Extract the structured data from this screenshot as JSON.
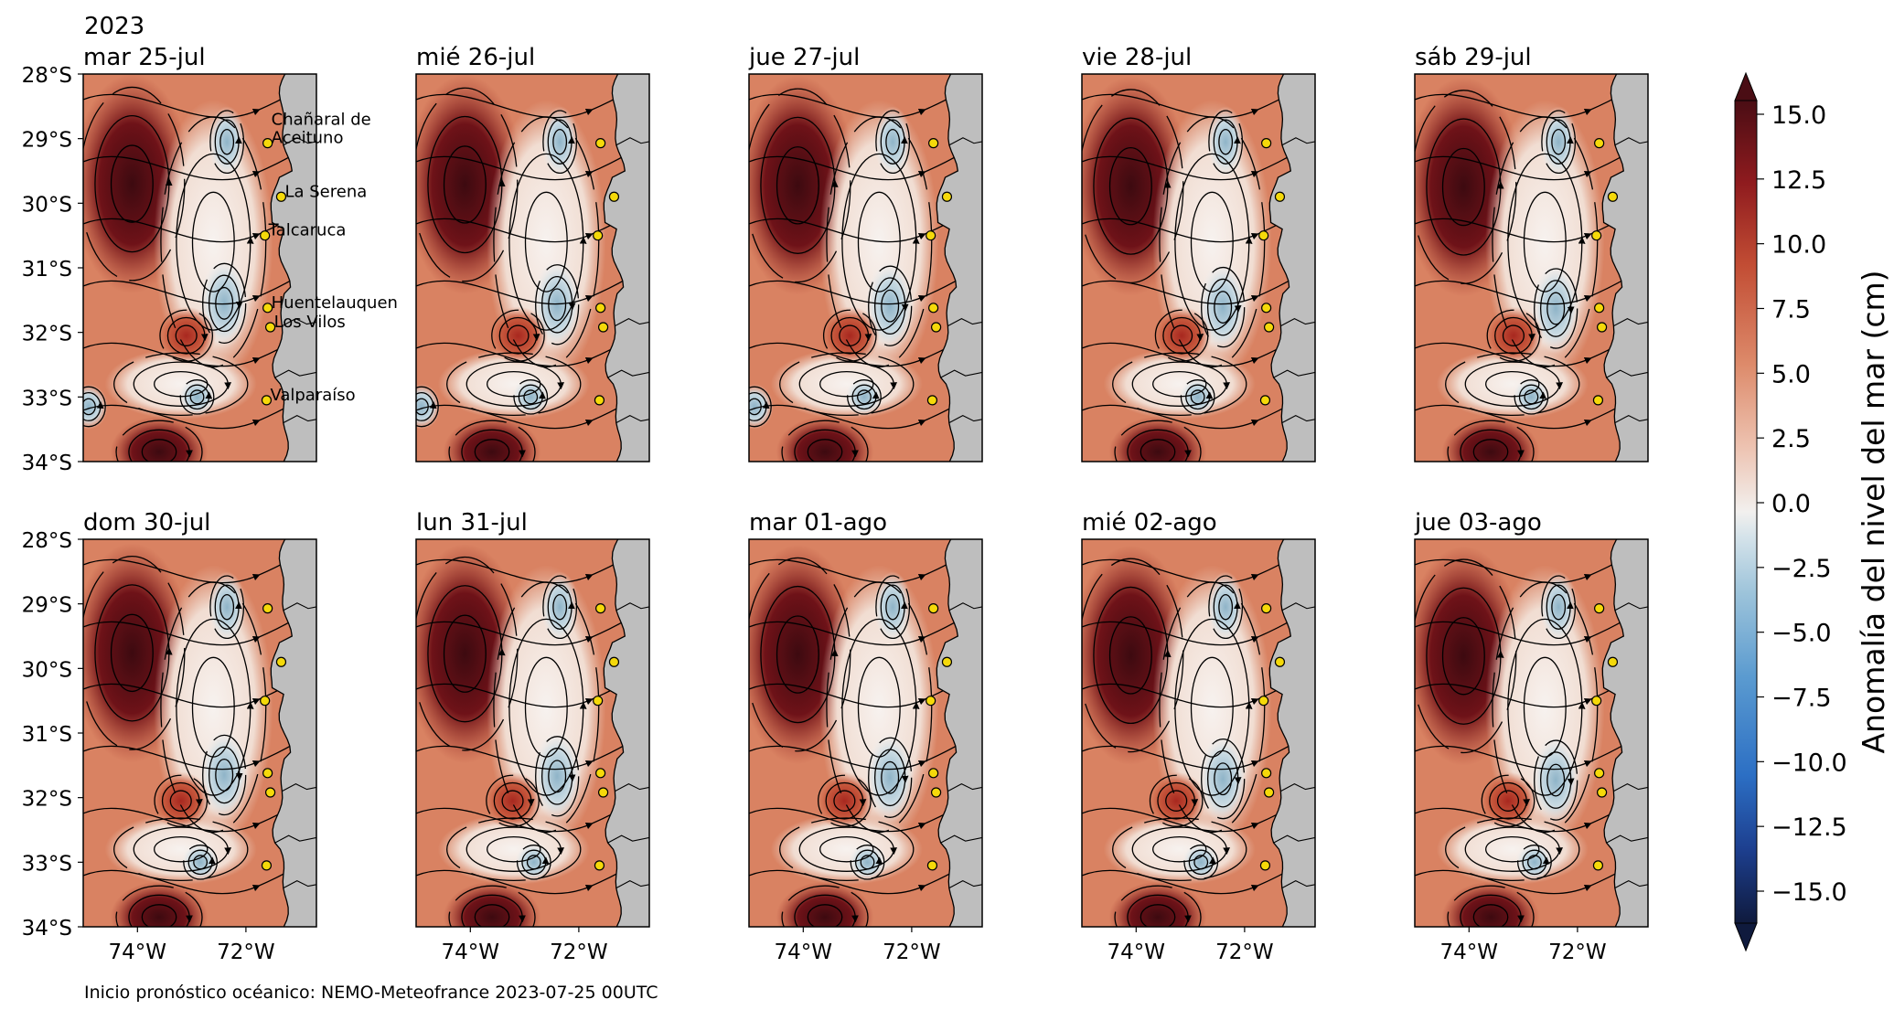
{
  "year_label": "2023",
  "footer": "Inicio pronóstico océanico: NEMO-Meteofrance 2023-07-25 00UTC",
  "colorbar": {
    "label": "Anomalía del nivel del mar (cm)",
    "ticks": [
      "15.0",
      "12.5",
      "10.0",
      "7.5",
      "5.0",
      "2.5",
      "0.0",
      "−2.5",
      "−5.0",
      "−7.5",
      "−10.0",
      "−12.5",
      "−15.0"
    ],
    "range": [
      -15,
      15
    ],
    "colormap": [
      "#0f1a3d",
      "#1d3f8f",
      "#2c6fc4",
      "#5b9bd0",
      "#9cc3da",
      "#d5e3ea",
      "#f2f0ee",
      "#edc2b0",
      "#dd8a6a",
      "#c24d34",
      "#8f1b1e",
      "#4a0d14"
    ]
  },
  "chart_data": {
    "type": "heatmap",
    "xticks": [
      "74°W",
      "72°W"
    ],
    "yticks": [
      "28°S",
      "29°S",
      "30°S",
      "31°S",
      "32°S",
      "33°S",
      "34°S"
    ],
    "lon_range": [
      -75,
      -70.7
    ],
    "lat_range": [
      -34,
      -28
    ],
    "land_color": "#bebebe",
    "panels": [
      {
        "title": "mar 25-jul"
      },
      {
        "title": "mié 26-jul"
      },
      {
        "title": "jue 27-jul"
      },
      {
        "title": "vie 28-jul"
      },
      {
        "title": "sáb 29-jul"
      },
      {
        "title": "dom 30-jul"
      },
      {
        "title": "lun 31-jul"
      },
      {
        "title": "mar 01-ago"
      },
      {
        "title": "mié 02-ago"
      },
      {
        "title": "jue 03-ago"
      }
    ],
    "stations": [
      {
        "name": "Chañaral de\nAceituno",
        "lon": -71.6,
        "lat": -29.07
      },
      {
        "name": "La Serena",
        "lon": -71.35,
        "lat": -29.9
      },
      {
        "name": "Talcaruca",
        "lon": -71.65,
        "lat": -30.5
      },
      {
        "name": "Huentelauquen",
        "lon": -71.6,
        "lat": -31.62
      },
      {
        "name": "Los Vilos",
        "lon": -71.55,
        "lat": -31.92
      },
      {
        "name": "Valparaíso",
        "lon": -71.62,
        "lat": -33.05
      }
    ],
    "station_color": "#f5d90a"
  }
}
